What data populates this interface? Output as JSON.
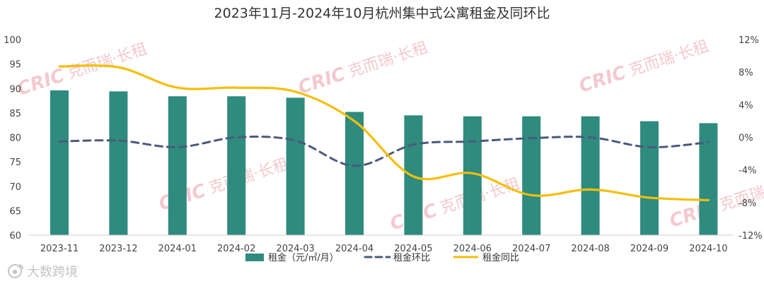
{
  "chart_data": {
    "type": "bar",
    "title": "2023年11月-2024年10月杭州集中式公寓租金及同环比",
    "categories": [
      "2023-11",
      "2023-12",
      "2024-01",
      "2024-02",
      "2024-03",
      "2024-04",
      "2024-05",
      "2024-06",
      "2024-07",
      "2024-08",
      "2024-09",
      "2024-10"
    ],
    "series": [
      {
        "name": "租金（元/㎡/月）",
        "kind": "bar",
        "axis": "left",
        "color": "#2e8b7e",
        "values": [
          89.6,
          89.4,
          88.4,
          88.4,
          88.1,
          85.2,
          84.5,
          84.3,
          84.3,
          84.3,
          83.3,
          82.9
        ]
      },
      {
        "name": "租金环比",
        "kind": "line",
        "style": "dashed",
        "axis": "right",
        "color": "#4b5a7a",
        "values": [
          -0.5,
          -0.4,
          -1.2,
          0.0,
          -0.4,
          -3.5,
          -0.9,
          -0.5,
          -0.1,
          0.0,
          -1.2,
          -0.6
        ]
      },
      {
        "name": "租金同比",
        "kind": "line",
        "style": "solid",
        "axis": "right",
        "color": "#f5be0b",
        "values": [
          8.7,
          8.6,
          6.1,
          6.1,
          5.6,
          2.0,
          -4.8,
          -4.4,
          -7.1,
          -6.4,
          -7.4,
          -7.7
        ]
      }
    ],
    "left_axis": {
      "min": 60,
      "max": 100,
      "step": 5,
      "tick_labels": [
        "60",
        "65",
        "70",
        "75",
        "80",
        "85",
        "90",
        "95",
        "100"
      ]
    },
    "right_axis": {
      "min": -12,
      "max": 12,
      "step": 4,
      "tick_labels": [
        "-12%",
        "-8%",
        "-4%",
        "0%",
        "4%",
        "8%",
        "12%"
      ]
    },
    "legend_position": "bottom",
    "grid": false
  },
  "watermark": {
    "brand": "CRIC",
    "text": "克而瑞·长租"
  },
  "source_logo": {
    "text": "大数跨境"
  }
}
